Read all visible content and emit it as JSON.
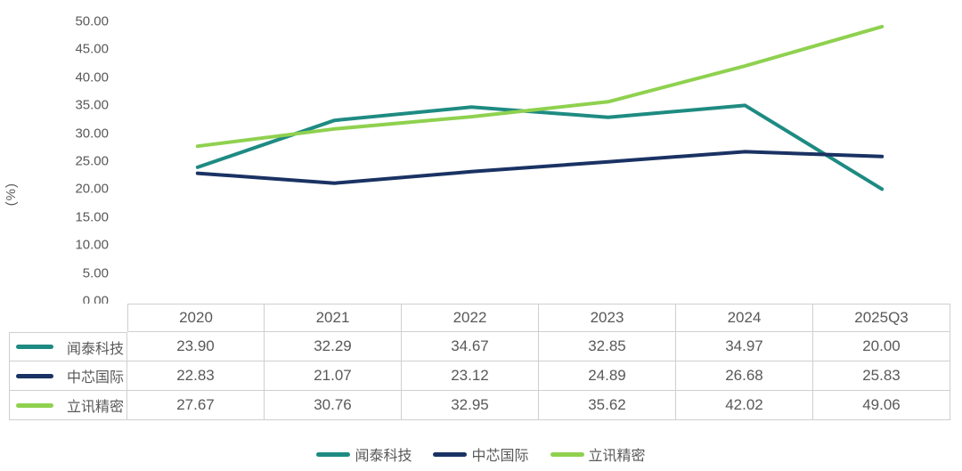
{
  "y_axis": {
    "unit": "(%)",
    "tick_labels": [
      "50.00",
      "45.00",
      "40.00",
      "35.00",
      "30.00",
      "25.00",
      "20.00",
      "15.00",
      "10.00",
      "5.00",
      "0.00"
    ]
  },
  "chart_data": {
    "type": "line",
    "categories": [
      "2020",
      "2021",
      "2022",
      "2023",
      "2024",
      "2025Q3"
    ],
    "series": [
      {
        "name": "闻泰科技",
        "color": "#1E8B82",
        "values": [
          23.9,
          32.29,
          34.67,
          32.85,
          34.97,
          20.0
        ]
      },
      {
        "name": "中芯国际",
        "color": "#1A3263",
        "values": [
          22.83,
          21.07,
          23.12,
          24.89,
          26.68,
          25.83
        ]
      },
      {
        "name": "立讯精密",
        "color": "#8FD14F",
        "values": [
          27.67,
          30.76,
          32.95,
          35.62,
          42.02,
          49.06
        ]
      }
    ],
    "title": "",
    "xlabel": "",
    "ylabel": "(%)",
    "ylim": [
      0,
      50
    ],
    "y_tick_step": 5,
    "grid": false,
    "legend_position": "bottom",
    "data_table_shown": true,
    "value_decimals": 2
  }
}
